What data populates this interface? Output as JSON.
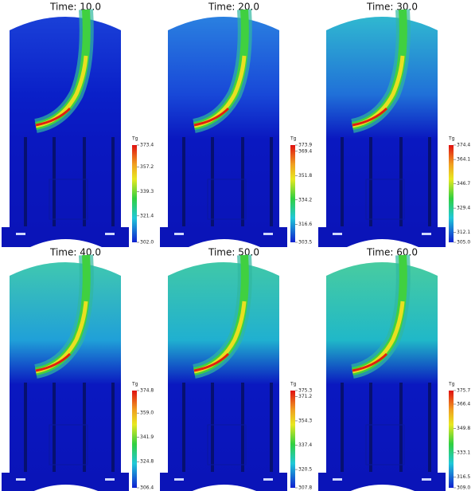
{
  "panels": [
    {
      "title": "Time: 10.0",
      "colorbar": {
        "title": "Tg",
        "ticks": [
          "373.4",
          "357.2",
          "339.3",
          "321.4",
          "302.0"
        ]
      }
    },
    {
      "title": "Time: 20.0",
      "colorbar": {
        "title": "Tg",
        "ticks": [
          "373.9",
          "369.4",
          "351.8",
          "334.2",
          "316.6",
          "303.5"
        ]
      }
    },
    {
      "title": "Time: 30.0",
      "colorbar": {
        "title": "Tg",
        "ticks": [
          "374.4",
          "364.1",
          "346.7",
          "329.4",
          "312.1",
          "305.0"
        ]
      }
    },
    {
      "title": "Time: 40.0",
      "colorbar": {
        "title": "Tg",
        "ticks": [
          "374.8",
          "359.0",
          "341.9",
          "324.8",
          "306.4"
        ]
      }
    },
    {
      "title": "Time: 50.0",
      "colorbar": {
        "title": "Tg",
        "ticks": [
          "375.3",
          "371.2",
          "354.3",
          "337.4",
          "320.5",
          "307.8"
        ]
      }
    },
    {
      "title": "Time: 60.0",
      "colorbar": {
        "title": "Tg",
        "ticks": [
          "375.7",
          "366.4",
          "349.8",
          "333.1",
          "316.5",
          "309.0"
        ]
      }
    }
  ]
}
